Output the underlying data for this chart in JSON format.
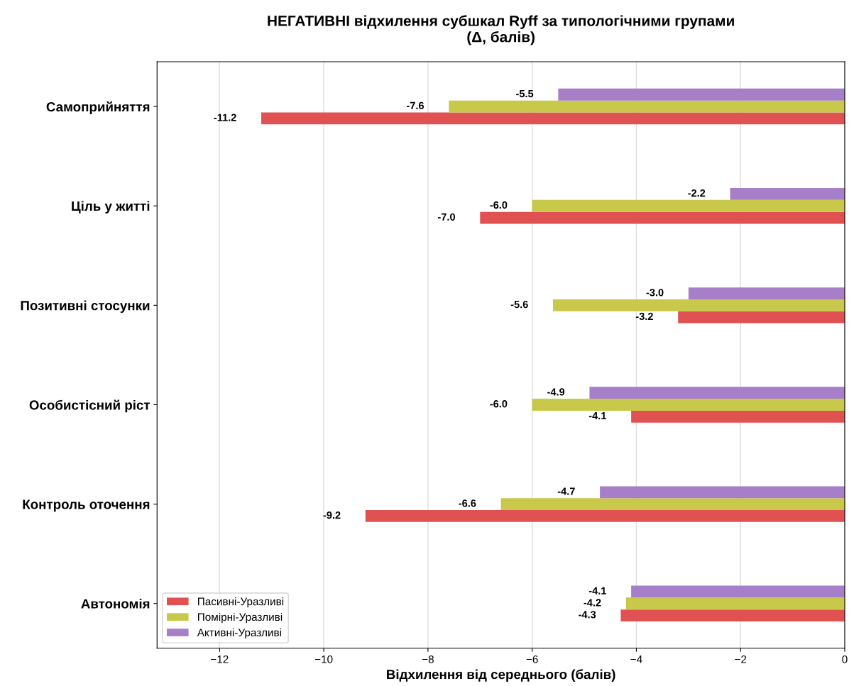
{
  "chart_data": {
    "type": "bar",
    "orientation": "horizontal",
    "title": "НЕГАТИВНІ відхилення субшкал Ryff за типологічними групами\n(Δ, балів)",
    "xlabel": "Відхилення від середнього (балів)",
    "categories": [
      "Самоприйняття",
      "Ціль у житті",
      "Позитивні стосунки",
      "Особистісний ріст",
      "Контроль оточення",
      "Автономія"
    ],
    "series": [
      {
        "name": "Пасивні-Уразливі",
        "color": "#e05252",
        "values": [
          -11.2,
          -7.0,
          -3.2,
          -4.1,
          -9.2,
          -4.3
        ],
        "value_labels": [
          "-11.2",
          "-7.0",
          "-3.2",
          "-4.1",
          "-9.2",
          "-4.3"
        ]
      },
      {
        "name": "Помірні-Уразливі",
        "color": "#c8c84a",
        "values": [
          -7.6,
          -6.0,
          -5.6,
          -6.0,
          -6.6,
          -4.2
        ],
        "value_labels": [
          "-7.6",
          "-6.0",
          "-5.6",
          "-6.0",
          "-6.6",
          "-4.2"
        ]
      },
      {
        "name": "Активні-Уразливі",
        "color": "#a67fc8",
        "values": [
          -5.5,
          -2.2,
          -3.0,
          -4.9,
          -4.7,
          -4.1
        ],
        "value_labels": [
          "-5.5",
          "-2.2",
          "-3.0",
          "-4.9",
          "-4.7",
          "-4.1"
        ]
      }
    ],
    "xlim": [
      -13.2,
      0
    ],
    "xticks": [
      {
        "value": -12,
        "label": "−12"
      },
      {
        "value": -10,
        "label": "−10"
      },
      {
        "value": -8,
        "label": "−8"
      },
      {
        "value": -6,
        "label": "−6"
      },
      {
        "value": -4,
        "label": "−4"
      },
      {
        "value": -2,
        "label": "−2"
      },
      {
        "value": 0,
        "label": "0"
      }
    ],
    "grid": "x",
    "legend": "bottom left"
  }
}
